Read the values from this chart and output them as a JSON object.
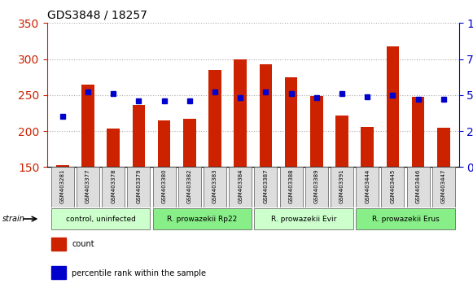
{
  "title": "GDS3848 / 18257",
  "samples": [
    "GSM403281",
    "GSM403377",
    "GSM403378",
    "GSM403379",
    "GSM403380",
    "GSM403382",
    "GSM403383",
    "GSM403384",
    "GSM403387",
    "GSM403388",
    "GSM403389",
    "GSM403391",
    "GSM403444",
    "GSM403445",
    "GSM403446",
    "GSM403447"
  ],
  "counts": [
    153,
    265,
    203,
    236,
    215,
    217,
    285,
    300,
    293,
    275,
    249,
    222,
    206,
    318,
    248,
    205
  ],
  "percentiles": [
    35,
    52,
    51,
    46,
    46,
    46,
    52,
    48,
    52,
    51,
    48,
    51,
    49,
    50,
    47,
    47
  ],
  "bar_color": "#cc2200",
  "dot_color": "#0000cc",
  "ylim_left": [
    150,
    350
  ],
  "ylim_right": [
    0,
    100
  ],
  "yticks_left": [
    150,
    200,
    250,
    300,
    350
  ],
  "yticks_right": [
    0,
    25,
    50,
    75,
    100
  ],
  "grid_color": "#aaaaaa",
  "background_color": "#ffffff",
  "plot_bg_color": "#ffffff",
  "title_color": "#000000",
  "left_axis_color": "#cc2200",
  "right_axis_color": "#0000cc",
  "groups": [
    {
      "label": "control, uninfected",
      "start": 0,
      "end": 3,
      "color": "#ccffcc"
    },
    {
      "label": "R. prowazekii Rp22",
      "start": 4,
      "end": 7,
      "color": "#88ee88"
    },
    {
      "label": "R. prowazekii Evir",
      "start": 8,
      "end": 11,
      "color": "#ccffcc"
    },
    {
      "label": "R. prowazekii Erus",
      "start": 12,
      "end": 15,
      "color": "#88ee88"
    }
  ],
  "legend_items": [
    {
      "label": "count",
      "color": "#cc2200"
    },
    {
      "label": "percentile rank within the sample",
      "color": "#0000cc"
    }
  ],
  "strain_label": "strain"
}
